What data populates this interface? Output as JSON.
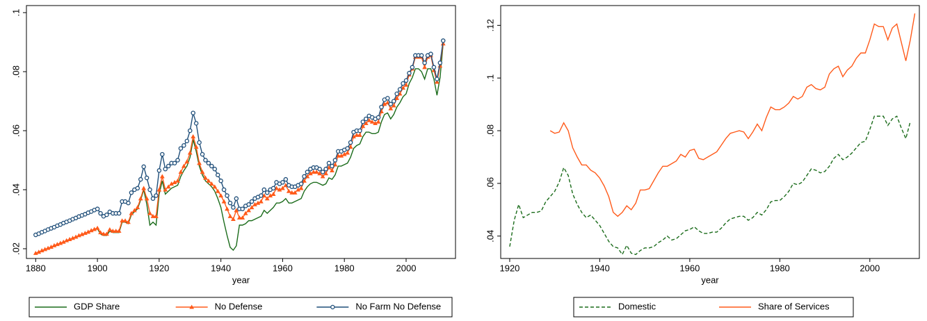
{
  "chart_data": [
    {
      "type": "line",
      "xlabel": "year",
      "legend": "bottom",
      "x": [
        1880,
        1881,
        1882,
        1883,
        1884,
        1885,
        1886,
        1887,
        1888,
        1889,
        1890,
        1891,
        1892,
        1893,
        1894,
        1895,
        1896,
        1897,
        1898,
        1899,
        1900,
        1901,
        1902,
        1903,
        1904,
        1905,
        1906,
        1907,
        1908,
        1909,
        1910,
        1911,
        1912,
        1913,
        1914,
        1915,
        1916,
        1917,
        1918,
        1919,
        1920,
        1921,
        1922,
        1923,
        1924,
        1925,
        1926,
        1927,
        1928,
        1929,
        1930,
        1931,
        1932,
        1933,
        1934,
        1935,
        1936,
        1937,
        1938,
        1939,
        1940,
        1941,
        1942,
        1943,
        1944,
        1945,
        1946,
        1947,
        1948,
        1949,
        1950,
        1951,
        1952,
        1953,
        1954,
        1955,
        1956,
        1957,
        1958,
        1959,
        1960,
        1961,
        1962,
        1963,
        1964,
        1965,
        1966,
        1967,
        1968,
        1969,
        1970,
        1971,
        1972,
        1973,
        1974,
        1975,
        1976,
        1977,
        1978,
        1979,
        1980,
        1981,
        1982,
        1983,
        1984,
        1985,
        1986,
        1987,
        1988,
        1989,
        1990,
        1991,
        1992,
        1993,
        1994,
        1995,
        1996,
        1997,
        1998,
        1999,
        2000,
        2001,
        2002,
        2003,
        2004,
        2005,
        2006,
        2007,
        2008,
        2009,
        2010,
        2011,
        2012
      ],
      "xlim": [
        1877,
        2016
      ],
      "xticks": [
        1880,
        1900,
        1920,
        1940,
        1960,
        1980,
        2000
      ],
      "ylim": [
        0.0167,
        0.1024
      ],
      "yticks": [
        {
          "value": 0.02,
          "label": ".02"
        },
        {
          "value": 0.04,
          "label": ".04"
        },
        {
          "value": 0.06,
          "label": ".06"
        },
        {
          "value": 0.08,
          "label": ".08"
        },
        {
          "value": 0.1,
          "label": ".1"
        }
      ],
      "series": [
        {
          "name": "GDP Share",
          "color": "#1a6b1a",
          "marker": "none",
          "dash": "solid",
          "values": [
            0.0183,
            0.0187,
            0.0192,
            0.0196,
            0.02,
            0.0204,
            0.0209,
            0.0213,
            0.0217,
            0.0221,
            0.0226,
            0.023,
            0.0234,
            0.0238,
            0.0243,
            0.0247,
            0.0251,
            0.0255,
            0.026,
            0.0264,
            0.0268,
            0.025,
            0.0245,
            0.0245,
            0.026,
            0.0255,
            0.0255,
            0.0255,
            0.029,
            0.029,
            0.0285,
            0.0315,
            0.0325,
            0.0335,
            0.0365,
            0.04,
            0.035,
            0.028,
            0.029,
            0.028,
            0.0385,
            0.043,
            0.0385,
            0.0395,
            0.0405,
            0.041,
            0.0415,
            0.0445,
            0.0465,
            0.048,
            0.051,
            0.057,
            0.053,
            0.048,
            0.045,
            0.043,
            0.042,
            0.041,
            0.0395,
            0.037,
            0.034,
            0.029,
            0.0245,
            0.0205,
            0.0195,
            0.021,
            0.028,
            0.028,
            0.0285,
            0.0295,
            0.0295,
            0.03,
            0.0305,
            0.031,
            0.033,
            0.032,
            0.033,
            0.034,
            0.0355,
            0.0355,
            0.036,
            0.037,
            0.0355,
            0.0355,
            0.036,
            0.0365,
            0.037,
            0.0395,
            0.041,
            0.042,
            0.0425,
            0.0425,
            0.042,
            0.0415,
            0.042,
            0.044,
            0.0435,
            0.045,
            0.048,
            0.048,
            0.0485,
            0.049,
            0.051,
            0.054,
            0.055,
            0.0555,
            0.058,
            0.0595,
            0.0595,
            0.059,
            0.059,
            0.0595,
            0.063,
            0.0655,
            0.066,
            0.064,
            0.0655,
            0.068,
            0.0695,
            0.0715,
            0.0725,
            0.076,
            0.078,
            0.081,
            0.081,
            0.08,
            0.0775,
            0.081,
            0.081,
            0.0775,
            0.072,
            0.078,
            0.0895
          ]
        },
        {
          "name": "No Defense",
          "color": "#ff5a1a",
          "marker": "triangle",
          "dash": "solid",
          "values": [
            0.0185,
            0.0189,
            0.0194,
            0.0198,
            0.0202,
            0.0206,
            0.0211,
            0.0215,
            0.0219,
            0.0223,
            0.0228,
            0.0232,
            0.0236,
            0.024,
            0.0245,
            0.0249,
            0.0253,
            0.0257,
            0.0262,
            0.0266,
            0.027,
            0.0255,
            0.025,
            0.025,
            0.0265,
            0.026,
            0.026,
            0.026,
            0.0295,
            0.0295,
            0.029,
            0.032,
            0.033,
            0.034,
            0.037,
            0.0405,
            0.037,
            0.032,
            0.031,
            0.031,
            0.04,
            0.0445,
            0.04,
            0.041,
            0.042,
            0.0425,
            0.043,
            0.046,
            0.048,
            0.0495,
            0.0525,
            0.058,
            0.0545,
            0.049,
            0.046,
            0.044,
            0.043,
            0.042,
            0.041,
            0.0395,
            0.038,
            0.036,
            0.0335,
            0.031,
            0.03,
            0.033,
            0.0305,
            0.0305,
            0.032,
            0.033,
            0.034,
            0.035,
            0.0355,
            0.036,
            0.038,
            0.037,
            0.038,
            0.0385,
            0.0405,
            0.04,
            0.0405,
            0.0415,
            0.0395,
            0.039,
            0.039,
            0.04,
            0.0405,
            0.043,
            0.0445,
            0.0455,
            0.046,
            0.046,
            0.0455,
            0.0445,
            0.0455,
            0.0475,
            0.0465,
            0.0485,
            0.0515,
            0.0515,
            0.052,
            0.0525,
            0.0545,
            0.058,
            0.0585,
            0.0585,
            0.0615,
            0.0625,
            0.0635,
            0.063,
            0.0625,
            0.063,
            0.0665,
            0.069,
            0.0695,
            0.0675,
            0.0685,
            0.071,
            0.0725,
            0.0745,
            0.0755,
            0.079,
            0.081,
            0.085,
            0.085,
            0.085,
            0.0815,
            0.085,
            0.0855,
            0.0805,
            0.0765,
            0.082,
            0.0895
          ]
        },
        {
          "name": "No Farm No Defense",
          "color": "#1f4e79",
          "marker": "circle",
          "dash": "solid",
          "values": [
            0.0247,
            0.0251,
            0.0256,
            0.026,
            0.0265,
            0.0269,
            0.0273,
            0.0278,
            0.0282,
            0.0287,
            0.0291,
            0.0295,
            0.03,
            0.0304,
            0.0309,
            0.0313,
            0.0317,
            0.0322,
            0.0326,
            0.0331,
            0.0335,
            0.032,
            0.031,
            0.0315,
            0.0325,
            0.032,
            0.032,
            0.032,
            0.036,
            0.036,
            0.0355,
            0.039,
            0.04,
            0.0405,
            0.0435,
            0.0478,
            0.044,
            0.04,
            0.037,
            0.038,
            0.0465,
            0.052,
            0.047,
            0.048,
            0.049,
            0.049,
            0.05,
            0.054,
            0.055,
            0.0565,
            0.06,
            0.066,
            0.0625,
            0.056,
            0.052,
            0.05,
            0.049,
            0.048,
            0.047,
            0.045,
            0.043,
            0.04,
            0.038,
            0.0355,
            0.034,
            0.037,
            0.0335,
            0.0335,
            0.0345,
            0.035,
            0.036,
            0.037,
            0.0375,
            0.038,
            0.04,
            0.039,
            0.04,
            0.0405,
            0.0425,
            0.042,
            0.0425,
            0.0435,
            0.0415,
            0.041,
            0.041,
            0.0415,
            0.042,
            0.0445,
            0.046,
            0.047,
            0.0475,
            0.0475,
            0.047,
            0.046,
            0.047,
            0.049,
            0.048,
            0.05,
            0.053,
            0.053,
            0.0535,
            0.054,
            0.056,
            0.0595,
            0.06,
            0.06,
            0.063,
            0.064,
            0.065,
            0.0645,
            0.064,
            0.0645,
            0.068,
            0.0705,
            0.071,
            0.069,
            0.07,
            0.0725,
            0.074,
            0.076,
            0.077,
            0.0795,
            0.0815,
            0.0855,
            0.0855,
            0.0855,
            0.083,
            0.0855,
            0.086,
            0.0815,
            0.0775,
            0.083,
            0.0905
          ]
        }
      ]
    },
    {
      "type": "line",
      "xlabel": "year",
      "legend": "bottom",
      "x": [
        1920,
        1921,
        1922,
        1923,
        1924,
        1925,
        1926,
        1927,
        1928,
        1929,
        1930,
        1931,
        1932,
        1933,
        1934,
        1935,
        1936,
        1937,
        1938,
        1939,
        1940,
        1941,
        1942,
        1943,
        1944,
        1945,
        1946,
        1947,
        1948,
        1949,
        1950,
        1951,
        1952,
        1953,
        1954,
        1955,
        1956,
        1957,
        1958,
        1959,
        1960,
        1961,
        1962,
        1963,
        1964,
        1965,
        1966,
        1967,
        1968,
        1969,
        1970,
        1971,
        1972,
        1973,
        1974,
        1975,
        1976,
        1977,
        1978,
        1979,
        1980,
        1981,
        1982,
        1983,
        1984,
        1985,
        1986,
        1987,
        1988,
        1989,
        1990,
        1991,
        1992,
        1993,
        1994,
        1995,
        1996,
        1997,
        1998,
        1999,
        2000,
        2001,
        2002,
        2003,
        2004,
        2005,
        2006,
        2007,
        2008,
        2009,
        2010
      ],
      "xlim": [
        1918,
        2011
      ],
      "xticks": [
        1920,
        1940,
        1960,
        1980,
        2000
      ],
      "ylim": [
        0.0315,
        0.1275
      ],
      "yticks": [
        {
          "value": 0.04,
          "label": ".04"
        },
        {
          "value": 0.06,
          "label": ".06"
        },
        {
          "value": 0.08,
          "label": ".08"
        },
        {
          "value": 0.1,
          "label": ".1"
        },
        {
          "value": 0.12,
          "label": ".12"
        }
      ],
      "series": [
        {
          "name": "Domestic",
          "color": "#1a6b1a",
          "marker": "none",
          "dash": "dashed",
          "values": [
            0.036,
            0.046,
            0.052,
            0.047,
            0.048,
            0.049,
            0.049,
            0.0495,
            0.053,
            0.055,
            0.057,
            0.0605,
            0.066,
            0.063,
            0.056,
            0.052,
            0.049,
            0.047,
            0.048,
            0.046,
            0.044,
            0.041,
            0.038,
            0.036,
            0.0355,
            0.033,
            0.0365,
            0.0335,
            0.033,
            0.0345,
            0.0355,
            0.0355,
            0.036,
            0.0375,
            0.0385,
            0.04,
            0.0385,
            0.039,
            0.0405,
            0.042,
            0.0425,
            0.0435,
            0.042,
            0.041,
            0.041,
            0.0415,
            0.0415,
            0.043,
            0.045,
            0.0465,
            0.047,
            0.0475,
            0.0475,
            0.046,
            0.047,
            0.049,
            0.048,
            0.05,
            0.053,
            0.0535,
            0.0535,
            0.055,
            0.057,
            0.06,
            0.0595,
            0.0605,
            0.063,
            0.0655,
            0.065,
            0.064,
            0.0645,
            0.0665,
            0.0695,
            0.071,
            0.069,
            0.07,
            0.0715,
            0.0735,
            0.0755,
            0.076,
            0.0805,
            0.0855,
            0.0855,
            0.0855,
            0.082,
            0.0845,
            0.0855,
            0.081,
            0.077,
            0.0835,
            null
          ]
        },
        {
          "name": "Share of Services",
          "color": "#ff5a1a",
          "marker": "none",
          "dash": "solid",
          "values": [
            null,
            null,
            null,
            null,
            null,
            null,
            null,
            null,
            null,
            0.08,
            0.079,
            0.0795,
            0.083,
            0.08,
            0.0735,
            0.07,
            0.067,
            0.067,
            0.065,
            0.064,
            0.062,
            0.059,
            0.055,
            0.049,
            0.0475,
            0.049,
            0.0515,
            0.05,
            0.0525,
            0.0575,
            0.0575,
            0.058,
            0.061,
            0.064,
            0.0665,
            0.0665,
            0.0675,
            0.0685,
            0.071,
            0.07,
            0.0725,
            0.073,
            0.0695,
            0.069,
            0.07,
            0.071,
            0.072,
            0.0745,
            0.077,
            0.079,
            0.0795,
            0.08,
            0.0795,
            0.077,
            0.0795,
            0.0825,
            0.08,
            0.085,
            0.089,
            0.088,
            0.088,
            0.089,
            0.0905,
            0.093,
            0.092,
            0.093,
            0.0965,
            0.0975,
            0.096,
            0.0955,
            0.0965,
            0.1015,
            0.1035,
            0.1045,
            0.1005,
            0.103,
            0.1045,
            0.1075,
            0.1095,
            0.1095,
            0.1145,
            0.1205,
            0.1195,
            0.1195,
            0.1145,
            0.119,
            0.1205,
            0.1135,
            0.1065,
            0.1145,
            0.1245
          ]
        }
      ]
    }
  ]
}
